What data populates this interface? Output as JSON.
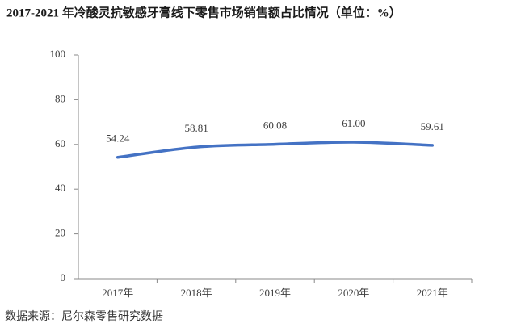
{
  "chart_data": {
    "type": "line",
    "title": "2017-2021 年冷酸灵抗敏感牙膏线下零售市场销售额占比情况（单位：%）",
    "categories": [
      "2017年",
      "2018年",
      "2019年",
      "2020年",
      "2021年"
    ],
    "series": [
      {
        "color": "#4472c4",
        "values": [
          54.24,
          58.81,
          60.08,
          61.0,
          59.61
        ],
        "value_labels": [
          "54.24",
          "58.81",
          "60.08",
          "61.00",
          "59.61"
        ]
      }
    ],
    "ylim": [
      0,
      100
    ],
    "yticks": [
      0,
      20,
      40,
      60,
      80,
      100
    ],
    "smooth": true,
    "source": "数据来源：尼尔森零售研究数据"
  }
}
